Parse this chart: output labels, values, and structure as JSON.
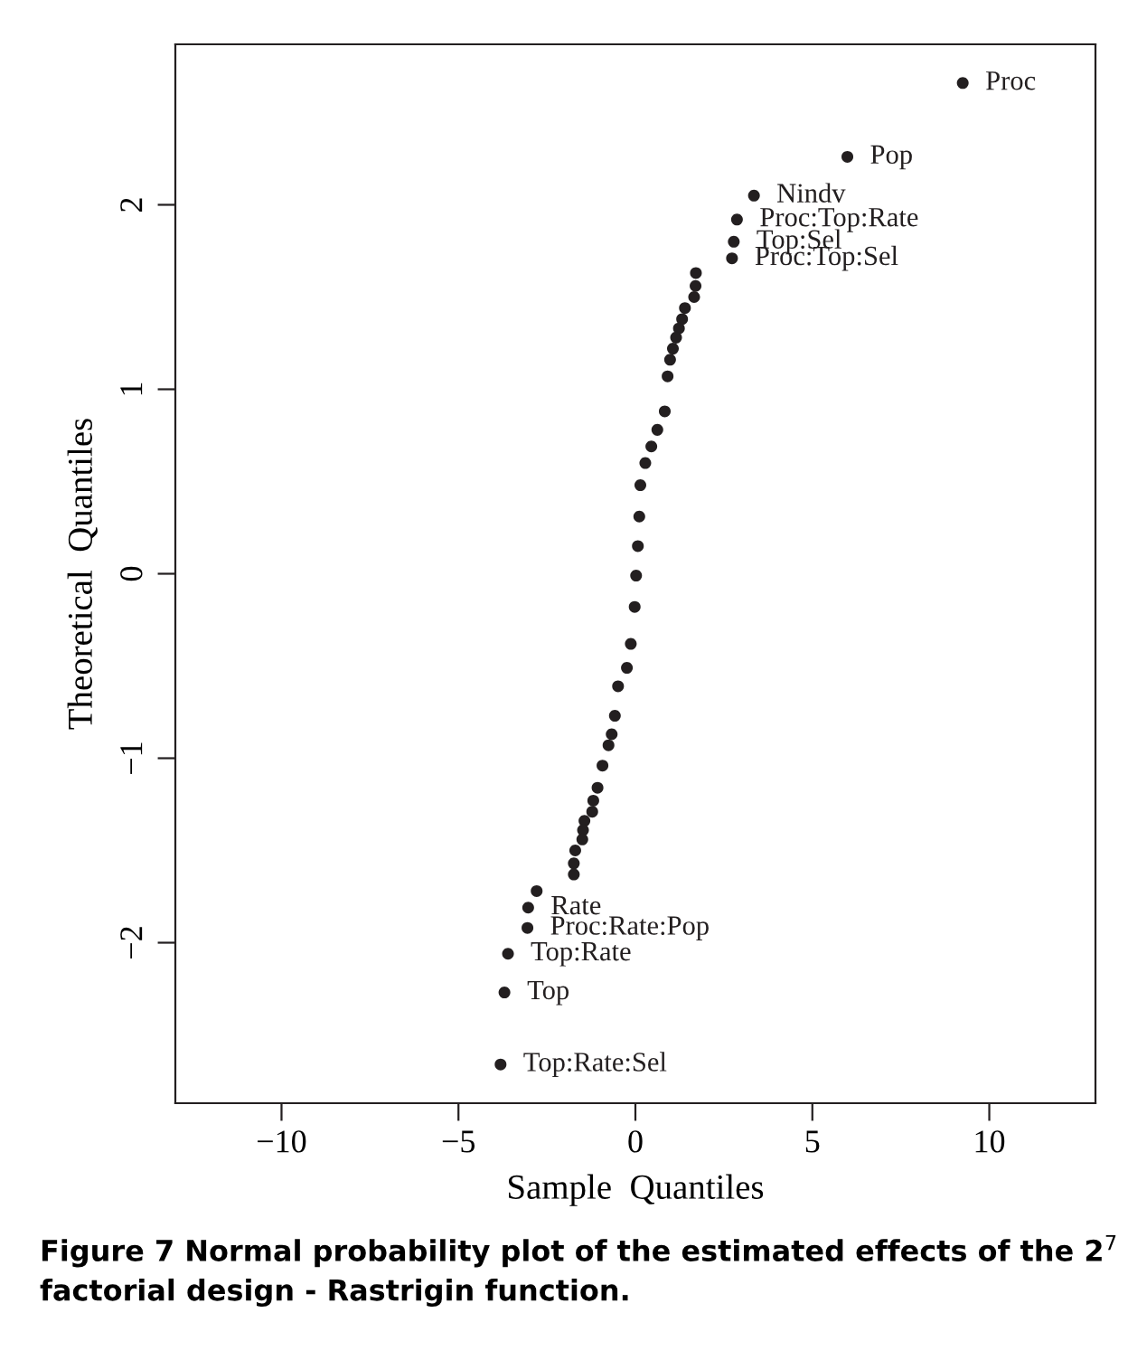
{
  "chart_data": {
    "type": "scatter",
    "xlabel": "Sample  Quantiles",
    "ylabel": "Theoretical  Quantiles",
    "xlim": [
      -13,
      13
    ],
    "ylim": [
      -2.87,
      2.87
    ],
    "xticks": [
      {
        "value": -10,
        "label": "−10"
      },
      {
        "value": -5,
        "label": "−5"
      },
      0,
      5,
      10
    ],
    "yticks": [
      {
        "value": -2,
        "label": "−2"
      },
      {
        "value": -1,
        "label": "−1"
      },
      0,
      1,
      2
    ],
    "grid": false,
    "marker": "circle",
    "series": [
      {
        "color": "#231f20",
        "x": [
          9.25,
          5.99,
          3.35,
          2.87,
          2.78,
          2.73,
          1.71,
          1.7,
          1.66,
          1.4,
          1.32,
          1.23,
          1.15,
          1.06,
          0.98,
          0.91,
          0.83,
          0.62,
          0.45,
          0.28,
          0.14,
          0.11,
          0.07,
          0.02,
          -0.02,
          -0.13,
          -0.24,
          -0.49,
          -0.58,
          -0.67,
          -0.76,
          -0.93,
          -1.07,
          -1.19,
          -1.22,
          -1.44,
          -1.48,
          -1.5,
          -1.7,
          -1.74,
          -1.74,
          -2.79,
          -3.03,
          -3.05,
          -3.6,
          -3.7,
          -3.81
        ],
        "values": [
          2.66,
          2.26,
          2.05,
          1.92,
          1.8,
          1.71,
          1.63,
          1.56,
          1.5,
          1.44,
          1.38,
          1.33,
          1.28,
          1.22,
          1.16,
          1.07,
          0.88,
          0.78,
          0.69,
          0.6,
          0.48,
          0.31,
          0.15,
          -0.01,
          -0.18,
          -0.38,
          -0.51,
          -0.61,
          -0.77,
          -0.87,
          -0.93,
          -1.04,
          -1.16,
          -1.23,
          -1.29,
          -1.34,
          -1.39,
          -1.44,
          -1.5,
          -1.57,
          -1.63,
          -1.72,
          -1.81,
          -1.92,
          -2.06,
          -2.27,
          -2.66
        ]
      }
    ],
    "annotations": [
      {
        "text": "Proc",
        "x": 9.25,
        "y": 2.66
      },
      {
        "text": "Pop",
        "x": 5.99,
        "y": 2.26
      },
      {
        "text": "Nindv",
        "x": 3.35,
        "y": 2.05
      },
      {
        "text": "Proc:Top:Rate",
        "x": 2.87,
        "y": 1.92
      },
      {
        "text": "Top:Sel",
        "x": 2.78,
        "y": 1.8
      },
      {
        "text": "Proc:Top:Sel",
        "x": 2.73,
        "y": 1.71
      },
      {
        "text": "Rate",
        "x": -3.03,
        "y": -1.81
      },
      {
        "text": "Proc:Rate:Pop",
        "x": -3.05,
        "y": -1.92
      },
      {
        "text": "Top:Rate",
        "x": -3.6,
        "y": -2.06
      },
      {
        "text": "Top",
        "x": -3.7,
        "y": -2.27
      },
      {
        "text": "Top:Rate:Sel",
        "x": -3.81,
        "y": -2.66
      },
      "Figure 7 Normal probability plot of the estimated effects of the 2$^{7}$ factorial design - Rastrigin function."
    ]
  }
}
